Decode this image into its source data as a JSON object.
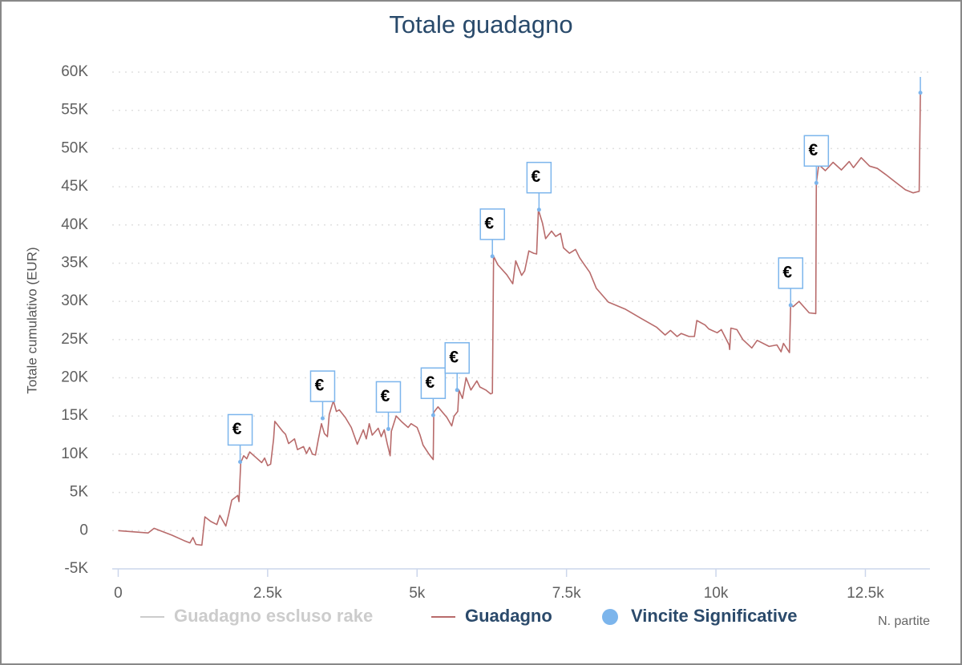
{
  "chart_data": {
    "type": "line",
    "title": "Totale guadagno",
    "y_label": "Totale cumulativo (EUR)",
    "x_label": "N. partite",
    "xlim": [
      -100,
      13580
    ],
    "ylim": [
      -5000,
      60000
    ],
    "xticks": [
      0,
      {
        "value": 2500,
        "label": "2.5k"
      },
      {
        "value": 5000,
        "label": "5k"
      },
      {
        "value": 7500,
        "label": "7.5k"
      },
      {
        "value": 10000,
        "label": "10k"
      },
      {
        "value": 12500,
        "label": "12.5k"
      }
    ],
    "yticks": [
      {
        "value": -5000,
        "label": "-5K"
      },
      0,
      {
        "value": 5000,
        "label": "5K"
      },
      {
        "value": 10000,
        "label": "10K"
      },
      {
        "value": 15000,
        "label": "15K"
      },
      {
        "value": 20000,
        "label": "20K"
      },
      {
        "value": 25000,
        "label": "25K"
      },
      {
        "value": 30000,
        "label": "30K"
      },
      {
        "value": 35000,
        "label": "35K"
      },
      {
        "value": 40000,
        "label": "40K"
      },
      {
        "value": 45000,
        "label": "45K"
      },
      {
        "value": 50000,
        "label": "50K"
      },
      {
        "value": 55000,
        "label": "55K"
      },
      {
        "value": 60000,
        "label": "60K"
      }
    ],
    "grid": true,
    "series": [
      {
        "name": "Guadagno escluso rake",
        "color": "#cccccc",
        "visible": false
      },
      {
        "name": "Guadagno",
        "color": "#b86b6b",
        "x": [
          0,
          500,
          600,
          700,
          900,
          1100,
          1200,
          1250,
          1300,
          1400,
          1450,
          1550,
          1650,
          1700,
          1800,
          1850,
          1900,
          2000,
          2020,
          2050,
          2100,
          2150,
          2200,
          2300,
          2400,
          2450,
          2500,
          2550,
          2600,
          2620,
          2750,
          2800,
          2850,
          2950,
          3000,
          3100,
          3150,
          3200,
          3250,
          3300,
          3350,
          3400,
          3450,
          3500,
          3530,
          3600,
          3650,
          3700,
          3800,
          3900,
          4000,
          4100,
          4150,
          4200,
          4250,
          4350,
          4400,
          4450,
          4500,
          4550,
          4570,
          4650,
          4750,
          4850,
          4900,
          5000,
          5050,
          5100,
          5200,
          5270,
          5280,
          5350,
          5500,
          5580,
          5620,
          5680,
          5700,
          5760,
          5820,
          5900,
          6000,
          6050,
          6150,
          6230,
          6260,
          6280,
          6350,
          6500,
          6600,
          6650,
          6750,
          6800,
          6870,
          6950,
          7000,
          7030,
          7100,
          7150,
          7250,
          7320,
          7400,
          7450,
          7550,
          7650,
          7720,
          7800,
          7890,
          8000,
          8200,
          8480,
          8740,
          9010,
          9150,
          9240,
          9350,
          9420,
          9550,
          9640,
          9680,
          9820,
          9880,
          10020,
          10090,
          10220,
          10230,
          10250,
          10350,
          10450,
          10600,
          10690,
          10890,
          11020,
          11090,
          11130,
          11230,
          11250,
          11290,
          11390,
          11560,
          11670,
          11680,
          11720,
          11830,
          11960,
          12100,
          12230,
          12300,
          12430,
          12570,
          12700,
          12840,
          12970,
          13170,
          13300,
          13400,
          13420
        ],
        "values": [
          0,
          -300,
          300,
          0,
          -600,
          -1300,
          -1600,
          -900,
          -1800,
          -1900,
          1800,
          1200,
          800,
          2000,
          600,
          2200,
          4000,
          4600,
          3800,
          8900,
          9800,
          9400,
          10300,
          9600,
          8900,
          9500,
          8500,
          8700,
          12000,
          14300,
          13000,
          12600,
          11400,
          12000,
          10600,
          11000,
          10100,
          10900,
          10000,
          9900,
          12000,
          14000,
          12700,
          12300,
          15200,
          17000,
          15600,
          15800,
          14800,
          13500,
          11300,
          13200,
          12000,
          14000,
          12500,
          13400,
          12300,
          13200,
          11400,
          9800,
          13000,
          15000,
          14200,
          13500,
          14000,
          13500,
          12500,
          11200,
          10000,
          9300,
          15500,
          16200,
          14800,
          13700,
          15000,
          15600,
          18400,
          17300,
          20000,
          18400,
          19600,
          18800,
          18400,
          17900,
          18000,
          35900,
          34800,
          33500,
          32300,
          35300,
          33400,
          34000,
          36600,
          36300,
          36200,
          42000,
          40200,
          38200,
          39200,
          38500,
          38900,
          37000,
          36300,
          36800,
          35700,
          34800,
          33800,
          31700,
          29900,
          29000,
          27800,
          26600,
          25600,
          26200,
          25400,
          25800,
          25400,
          25400,
          27500,
          26900,
          26400,
          25900,
          26300,
          24300,
          23700,
          26500,
          26300,
          25000,
          23900,
          24900,
          24100,
          24300,
          23400,
          24500,
          23300,
          29600,
          29300,
          30000,
          28500,
          28400,
          45500,
          47900,
          47100,
          48200,
          47200,
          48300,
          47500,
          48800,
          47700,
          47400,
          46600,
          45800,
          44600,
          44200,
          44400,
          57300
        ]
      },
      {
        "name": "Vincite Significative",
        "type": "flags",
        "color": "#7cb5ec",
        "x": [
          2040,
          3420,
          4520,
          5270,
          5670,
          6260,
          7040,
          11250,
          11680,
          13420
        ],
        "values": [
          9000,
          14700,
          13300,
          15100,
          18400,
          35900,
          42000,
          29500,
          45500,
          57300
        ],
        "labels": [
          "€",
          "€",
          "€",
          "€",
          "€",
          "€",
          "€",
          "€",
          "€",
          "€"
        ]
      }
    ]
  }
}
